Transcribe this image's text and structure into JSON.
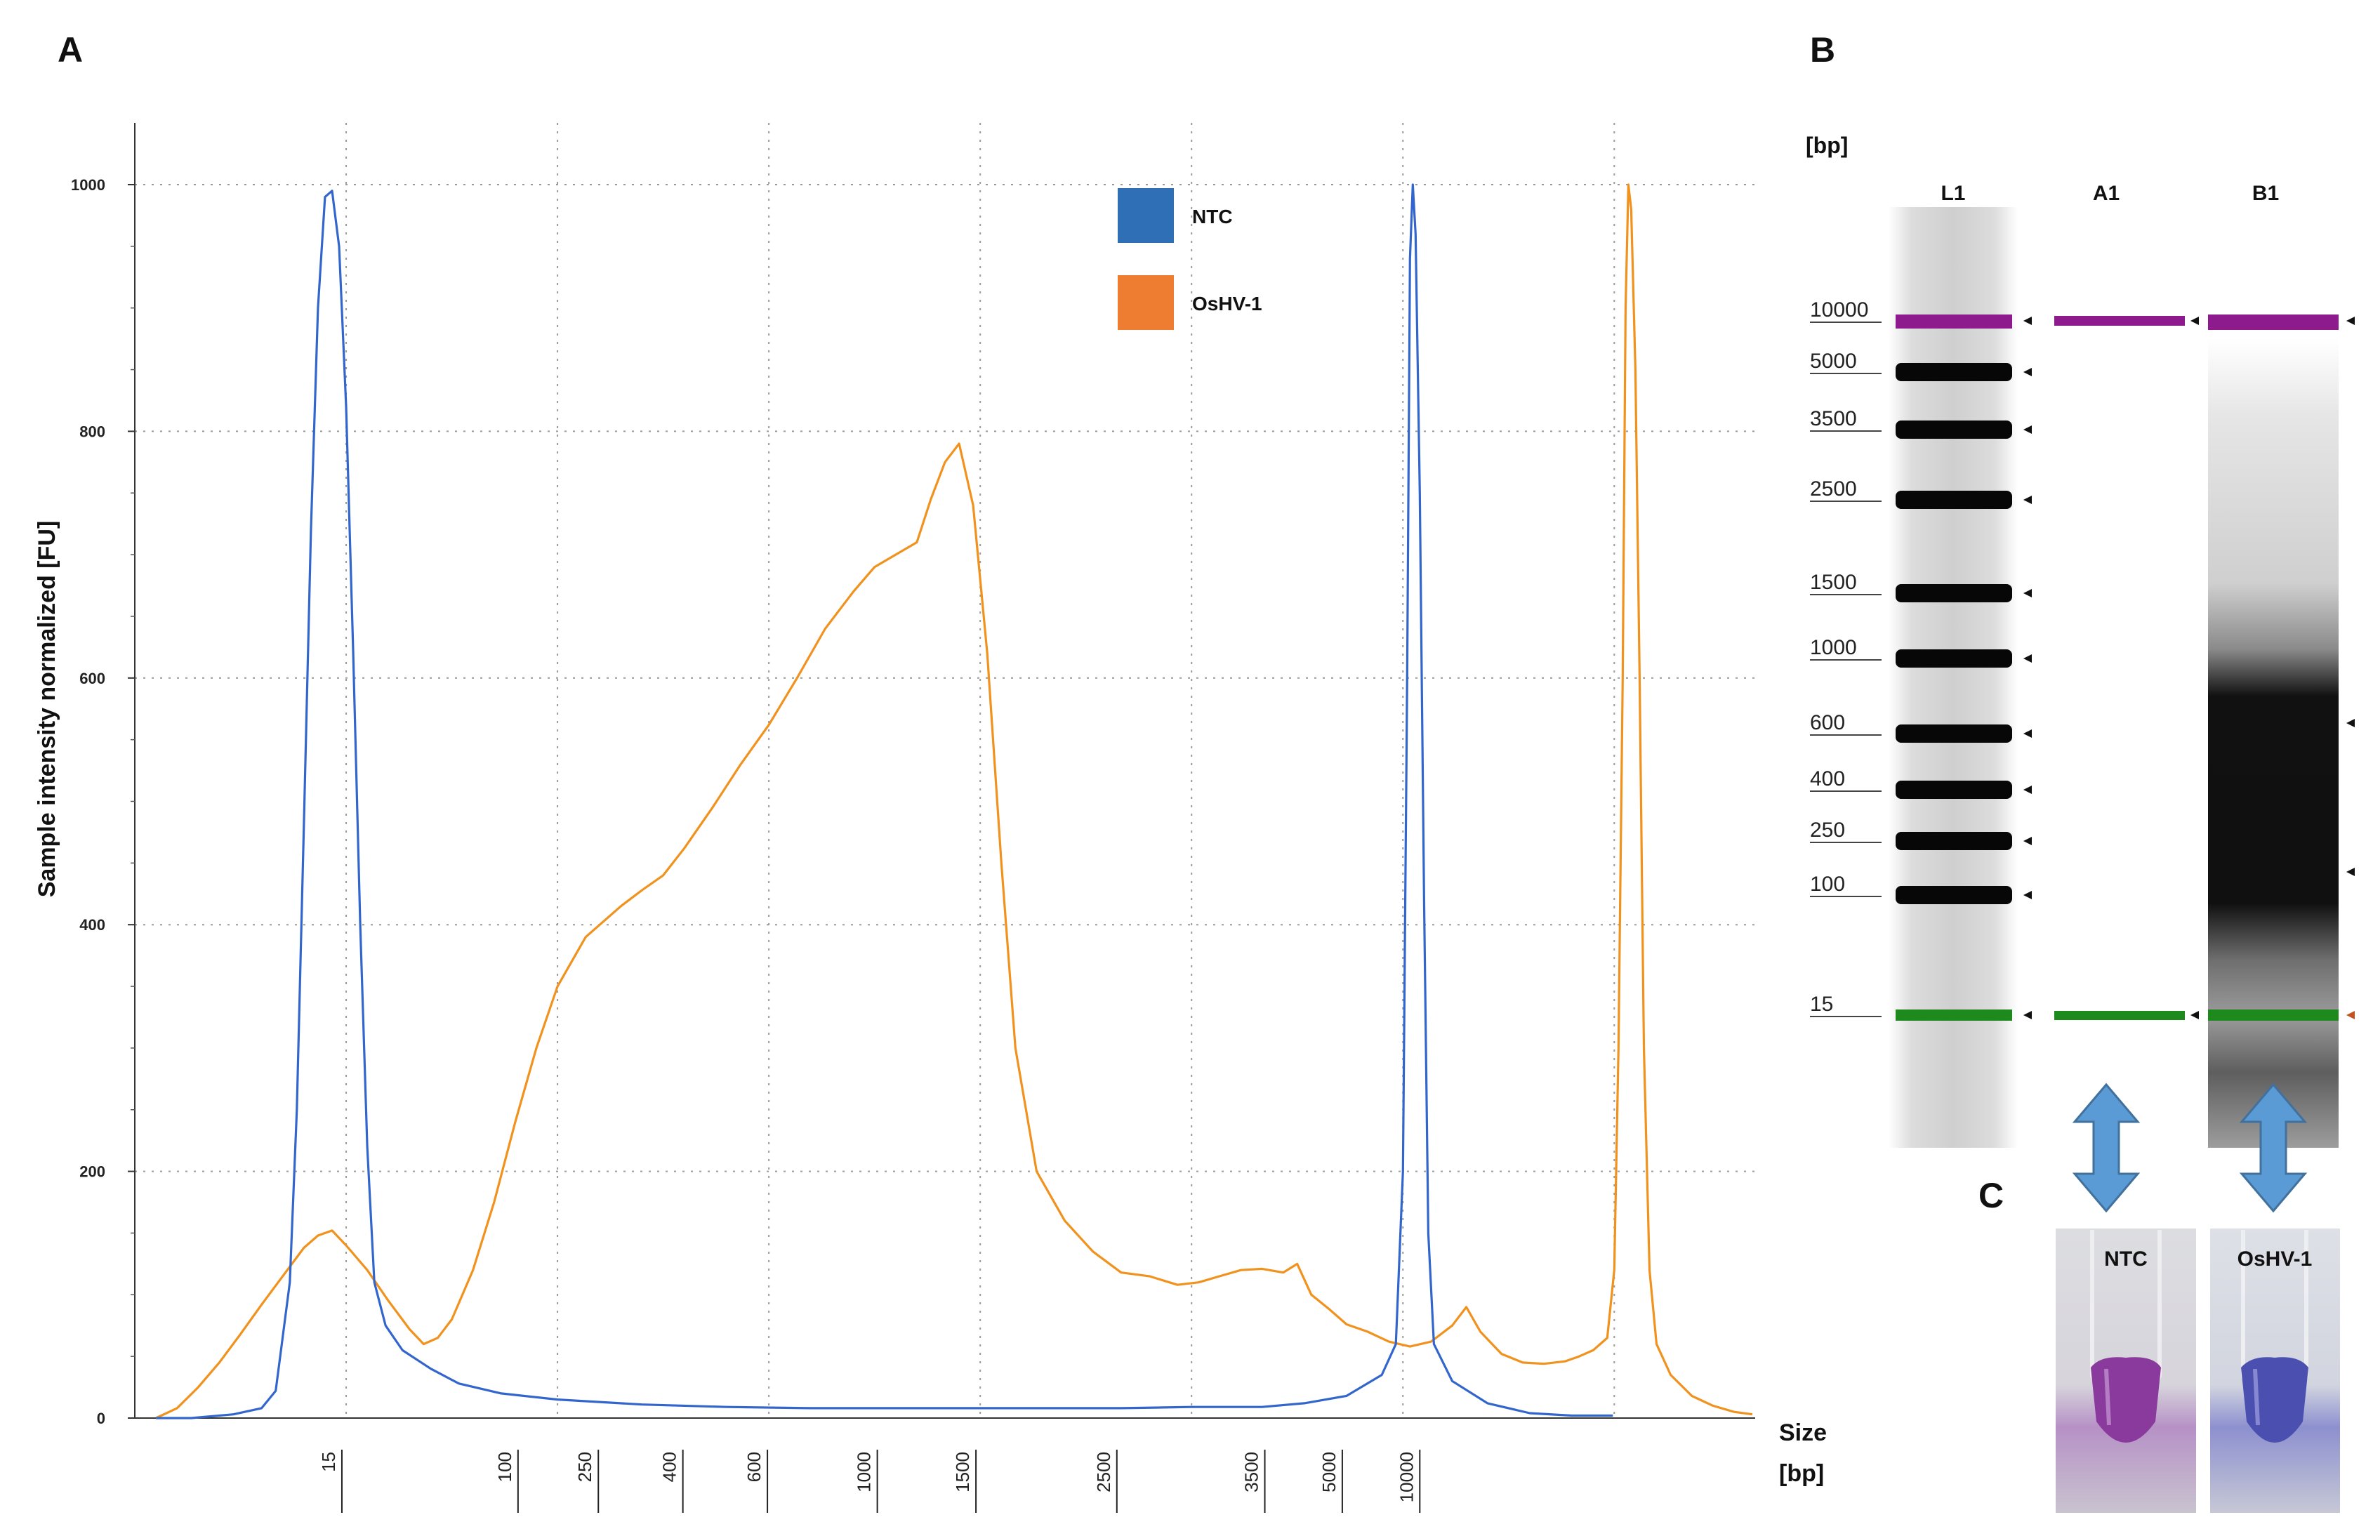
{
  "panels": {
    "a": "A",
    "b": "B",
    "c": "C"
  },
  "chart_data": {
    "type": "line",
    "title": "",
    "ylabel": "Sample intensity normalized [FU]",
    "xlabel": [
      "Size",
      "[bp]"
    ],
    "ylim": [
      0,
      1000
    ],
    "yticks": [
      0,
      200,
      400,
      600,
      800,
      1000
    ],
    "xticks": [
      "15",
      "100",
      "250",
      "400",
      "600",
      "1000",
      "1500",
      "2500",
      "3500",
      "5000",
      "10000"
    ],
    "grid": true,
    "legend_position": "top-right",
    "series": [
      {
        "name": "NTC",
        "color": "#3366cc",
        "points": [
          [
            15,
            0
          ],
          [
            40,
            0
          ],
          [
            70,
            3
          ],
          [
            90,
            8
          ],
          [
            100,
            22
          ],
          [
            110,
            110
          ],
          [
            115,
            250
          ],
          [
            120,
            480
          ],
          [
            125,
            720
          ],
          [
            130,
            900
          ],
          [
            135,
            990
          ],
          [
            140,
            995
          ],
          [
            145,
            950
          ],
          [
            150,
            820
          ],
          [
            155,
            620
          ],
          [
            160,
            400
          ],
          [
            165,
            220
          ],
          [
            170,
            110
          ],
          [
            178,
            75
          ],
          [
            190,
            55
          ],
          [
            210,
            40
          ],
          [
            230,
            28
          ],
          [
            260,
            20
          ],
          [
            300,
            15
          ],
          [
            360,
            11
          ],
          [
            420,
            9
          ],
          [
            480,
            8
          ],
          [
            520,
            8
          ],
          [
            600,
            8
          ],
          [
            700,
            8
          ],
          [
            750,
            9
          ],
          [
            800,
            9
          ],
          [
            830,
            12
          ],
          [
            860,
            18
          ],
          [
            885,
            35
          ],
          [
            895,
            60
          ],
          [
            900,
            200
          ],
          [
            903,
            600
          ],
          [
            905,
            940
          ],
          [
            907,
            1000
          ],
          [
            909,
            960
          ],
          [
            912,
            750
          ],
          [
            915,
            420
          ],
          [
            918,
            150
          ],
          [
            922,
            60
          ],
          [
            935,
            30
          ],
          [
            960,
            12
          ],
          [
            990,
            4
          ],
          [
            1020,
            2
          ],
          [
            1049,
            2
          ]
        ]
      },
      {
        "name": "OsHV-1",
        "color": "#f0921d",
        "points": [
          [
            15,
            0
          ],
          [
            30,
            8
          ],
          [
            45,
            25
          ],
          [
            60,
            45
          ],
          [
            75,
            68
          ],
          [
            90,
            92
          ],
          [
            105,
            115
          ],
          [
            120,
            138
          ],
          [
            130,
            148
          ],
          [
            140,
            152
          ],
          [
            150,
            140
          ],
          [
            165,
            120
          ],
          [
            180,
            95
          ],
          [
            195,
            72
          ],
          [
            205,
            60
          ],
          [
            215,
            65
          ],
          [
            225,
            80
          ],
          [
            240,
            120
          ],
          [
            255,
            175
          ],
          [
            270,
            240
          ],
          [
            285,
            300
          ],
          [
            300,
            350
          ],
          [
            320,
            390
          ],
          [
            335,
            405
          ],
          [
            345,
            415
          ],
          [
            360,
            428
          ],
          [
            375,
            440
          ],
          [
            390,
            462
          ],
          [
            410,
            495
          ],
          [
            430,
            530
          ],
          [
            450,
            562
          ],
          [
            470,
            600
          ],
          [
            490,
            640
          ],
          [
            510,
            670
          ],
          [
            525,
            690
          ],
          [
            540,
            700
          ],
          [
            555,
            710
          ],
          [
            565,
            745
          ],
          [
            575,
            775
          ],
          [
            585,
            790
          ],
          [
            595,
            740
          ],
          [
            605,
            620
          ],
          [
            615,
            450
          ],
          [
            625,
            300
          ],
          [
            640,
            200
          ],
          [
            660,
            160
          ],
          [
            680,
            135
          ],
          [
            700,
            118
          ],
          [
            720,
            115
          ],
          [
            740,
            108
          ],
          [
            755,
            110
          ],
          [
            770,
            115
          ],
          [
            785,
            120
          ],
          [
            800,
            121
          ],
          [
            815,
            118
          ],
          [
            825,
            125
          ],
          [
            835,
            100
          ],
          [
            848,
            88
          ],
          [
            860,
            76
          ],
          [
            875,
            70
          ],
          [
            890,
            62
          ],
          [
            905,
            58
          ],
          [
            920,
            62
          ],
          [
            935,
            75
          ],
          [
            945,
            90
          ],
          [
            955,
            70
          ],
          [
            970,
            52
          ],
          [
            985,
            45
          ],
          [
            1000,
            44
          ],
          [
            1015,
            46
          ],
          [
            1025,
            50
          ],
          [
            1035,
            55
          ],
          [
            1045,
            65
          ],
          [
            1050,
            120
          ],
          [
            1053,
            300
          ],
          [
            1056,
            600
          ],
          [
            1058,
            900
          ],
          [
            1060,
            1000
          ],
          [
            1062,
            980
          ],
          [
            1065,
            850
          ],
          [
            1068,
            600
          ],
          [
            1071,
            300
          ],
          [
            1075,
            120
          ],
          [
            1080,
            60
          ],
          [
            1090,
            35
          ],
          [
            1105,
            18
          ],
          [
            1120,
            10
          ],
          [
            1135,
            5
          ],
          [
            1148,
            3
          ]
        ]
      }
    ]
  },
  "gel": {
    "unit": "[bp]",
    "lanes": [
      "L1",
      "A1",
      "B1"
    ],
    "ladder": [
      "10000",
      "5000",
      "3500",
      "2500",
      "1500",
      "1000",
      "600",
      "400",
      "250",
      "100",
      "15"
    ],
    "marker_colors": {
      "upper": "#8e1b8e",
      "lower": "#1e8a1e"
    }
  },
  "tubes": [
    "NTC",
    "OsHV-1"
  ],
  "colors": {
    "tube_ntc": "#8a3a9c",
    "tube_oshv": "#4b4fb0",
    "arrow": "#5b9bd5"
  }
}
